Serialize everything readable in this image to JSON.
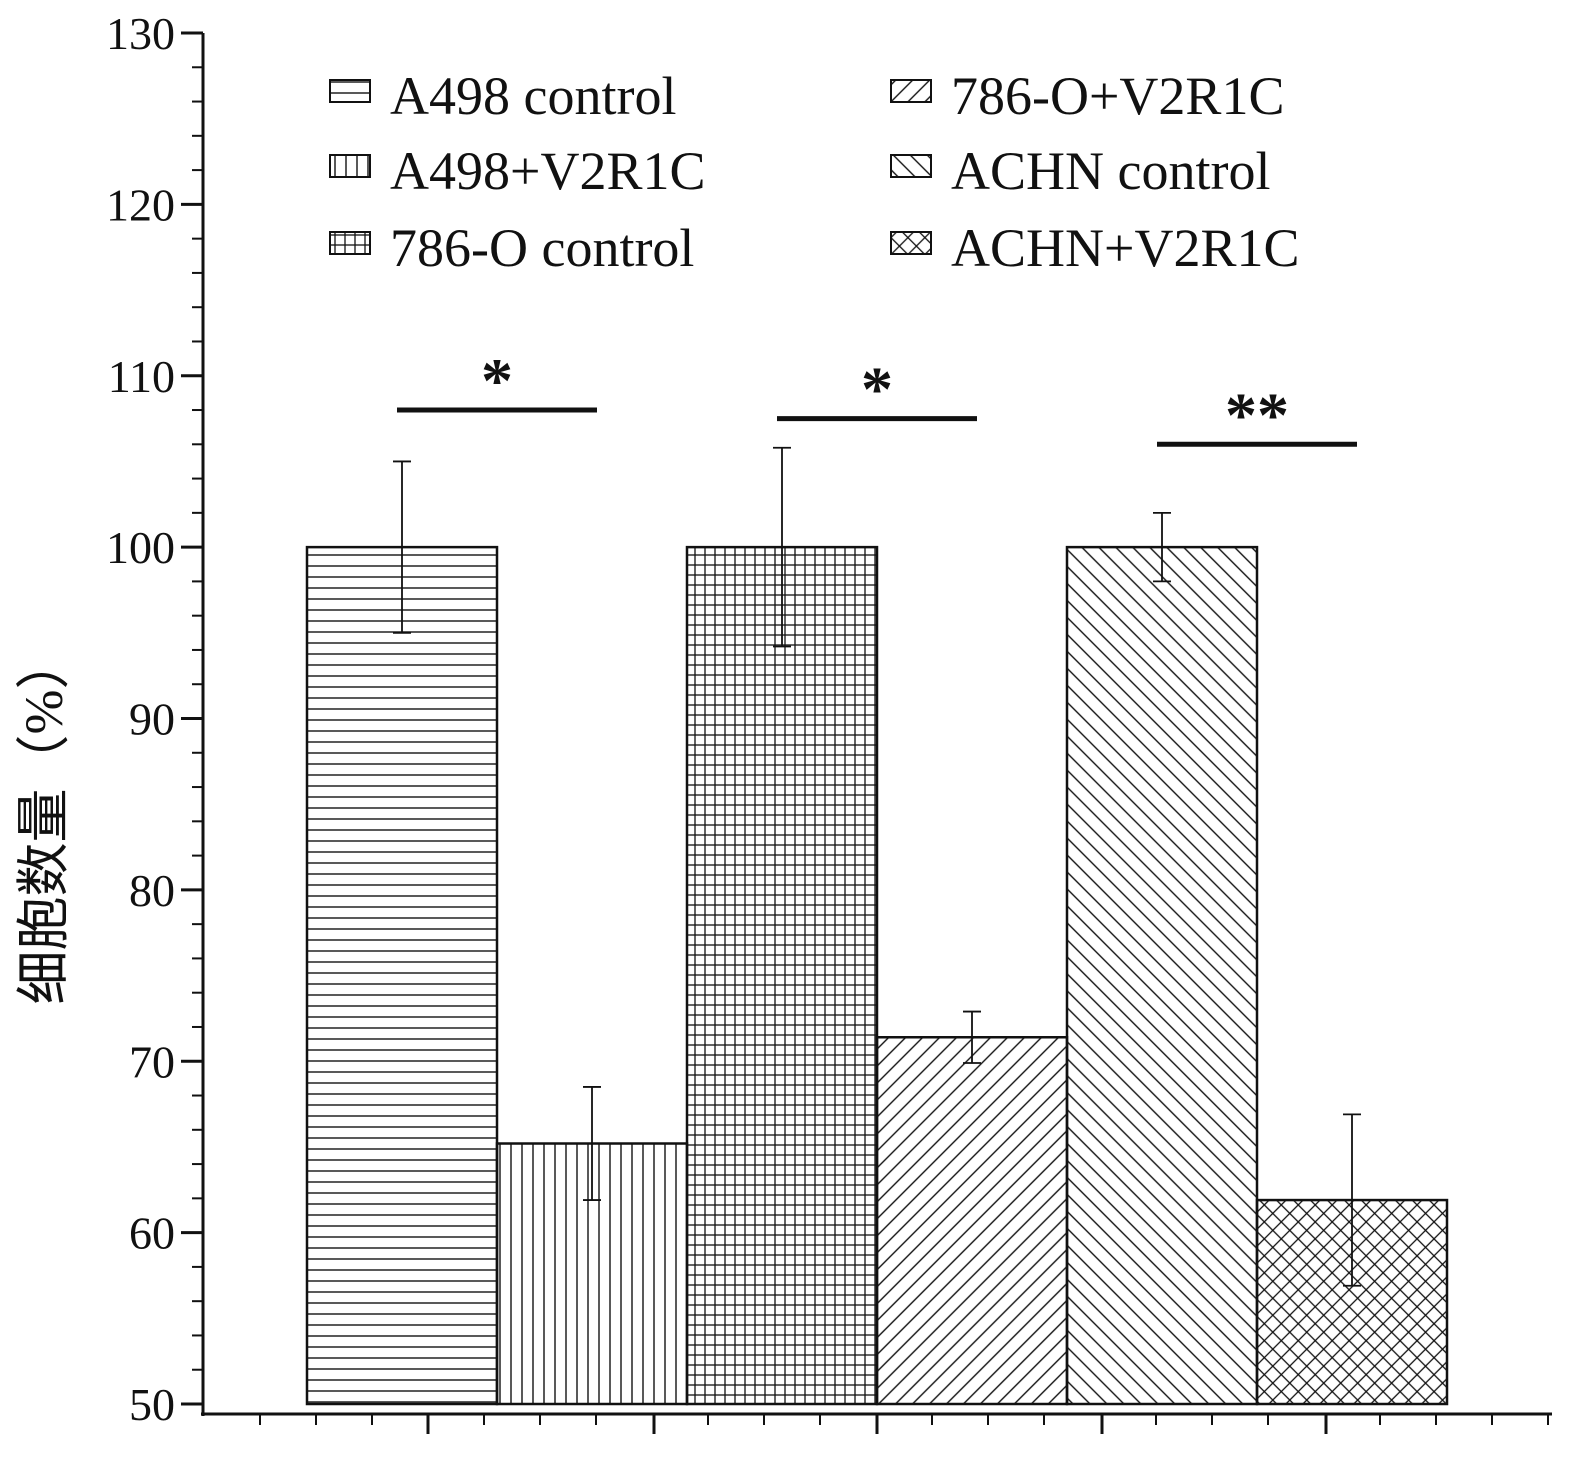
{
  "chart_data": {
    "type": "bar",
    "title": "",
    "xlabel": "",
    "ylabel": "细胞数量（%）",
    "ylim": [
      50,
      130
    ],
    "yticks": [
      50,
      60,
      70,
      80,
      90,
      100,
      110,
      120,
      130
    ],
    "grid": false,
    "legend_position": "top",
    "categories": [
      "A498 control",
      "A498+V2R1C",
      "786-O control",
      "786-O+V2R1C",
      "ACHN control",
      "ACHN+V2R1C"
    ],
    "values": [
      100,
      65.2,
      100,
      71.4,
      100,
      61.9
    ],
    "errors": [
      5.0,
      3.3,
      5.8,
      1.5,
      2.0,
      5.0
    ],
    "patterns": [
      "hlines",
      "vlines",
      "grid",
      "diag-up",
      "diag-down",
      "crosshatch"
    ],
    "legend": [
      {
        "label": "A498 control",
        "pattern": "hlines"
      },
      {
        "label": "786-O+V2R1C",
        "pattern": "diag-up"
      },
      {
        "label": "A498+V2R1C",
        "pattern": "vlines"
      },
      {
        "label": "ACHN control",
        "pattern": "diag-down"
      },
      {
        "label": "786-O control",
        "pattern": "grid"
      },
      {
        "label": "ACHN+V2R1C",
        "pattern": "crosshatch"
      }
    ],
    "significance": [
      {
        "from": 0,
        "to": 1,
        "label": "*",
        "y": 108
      },
      {
        "from": 2,
        "to": 3,
        "label": "*",
        "y": 107.5
      },
      {
        "from": 4,
        "to": 5,
        "label": "**",
        "y": 106
      }
    ],
    "colors": {
      "ink": "#111111",
      "background": "#ffffff"
    }
  }
}
